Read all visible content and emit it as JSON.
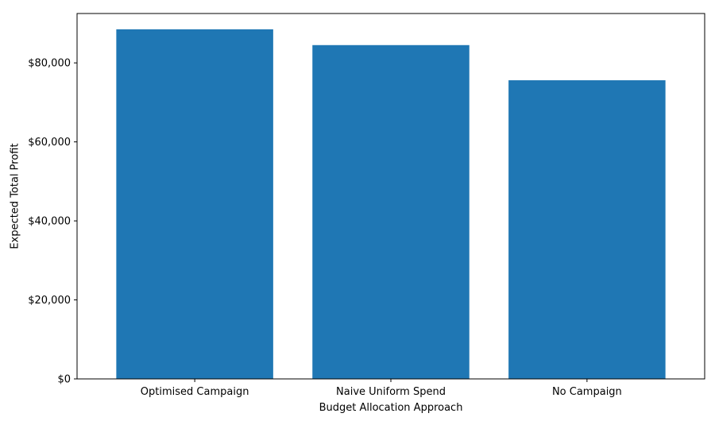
{
  "chart_data": {
    "type": "bar",
    "title": "",
    "xlabel": "Budget Allocation Approach",
    "ylabel": "Expected Total Profit",
    "categories": [
      "Optimised Campaign",
      "Naive Uniform Spend",
      "No Campaign"
    ],
    "values": [
      88500,
      84500,
      75600
    ],
    "ylim": [
      0,
      92500
    ],
    "yticks": [
      0,
      20000,
      40000,
      60000,
      80000
    ],
    "ytick_labels": [
      "$0",
      "$20,000",
      "$40,000",
      "$60,000",
      "$80,000"
    ],
    "bar_color": "#1f77b4",
    "grid": false,
    "legend": false
  }
}
